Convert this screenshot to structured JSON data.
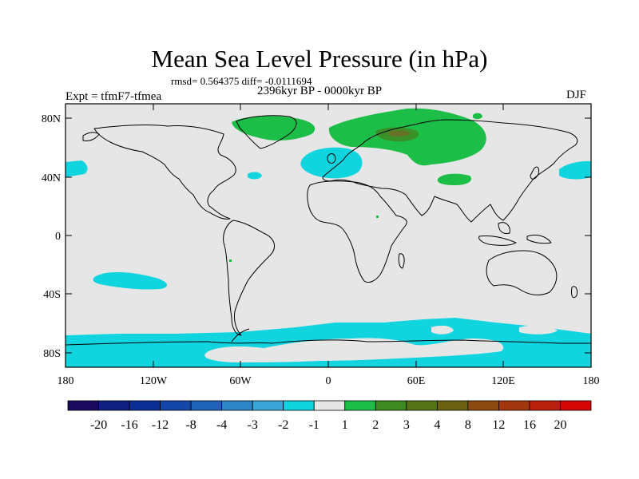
{
  "title": "Mean Sea Level Pressure (in hPa)",
  "stats": "rmsd= 0.564375  diff= -0.0111694",
  "experiment": "Expt = tfmF7-tfmea",
  "period": "2396kyr BP - 0000kyr BP",
  "season": "DJF",
  "lat_labels": [
    "80N",
    "40N",
    "0",
    "40S",
    "80S"
  ],
  "lon_labels": [
    "180",
    "120W",
    "60W",
    "0",
    "60E",
    "120E",
    "180"
  ],
  "colorbar": {
    "labels": [
      "-20",
      "-16",
      "-12",
      "-8",
      "-4",
      "-3",
      "-2",
      "-1",
      "1",
      "2",
      "3",
      "4",
      "8",
      "12",
      "16",
      "20"
    ],
    "colors": [
      "#1a0a5e",
      "#101f80",
      "#0c2f96",
      "#1447a8",
      "#1f63b8",
      "#2e86c8",
      "#3aa6d8",
      "#10d5de",
      "#e6e6e6",
      "#1dbe48",
      "#3e8a22",
      "#567416",
      "#6a6210",
      "#8a4a10",
      "#a2360e",
      "#b8200c",
      "#d60606"
    ]
  },
  "colors": {
    "background": "#e6e6e6",
    "cyan": "#10d5de",
    "green": "#1dbe48",
    "darkgreen": "#3e8a22",
    "brown": "#8a5a2a"
  }
}
